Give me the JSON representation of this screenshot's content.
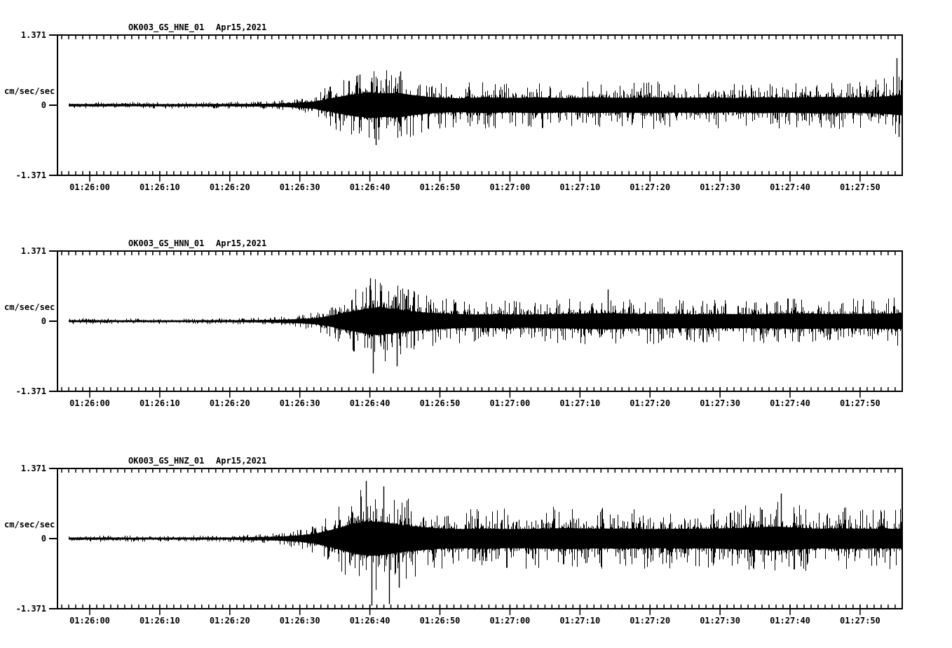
{
  "figure": {
    "background_color": "#ffffff",
    "stroke_color": "#000000",
    "kind": "three-component strong-motion seismogram record display"
  },
  "chart_data": [
    {
      "type": "line",
      "title": "OK003_GS_HNE_01",
      "date_label": "Apr15,2021",
      "y_unit_label": "cm/sec/sec",
      "y_tick_labels": [
        "1.371",
        "0",
        "-1.371"
      ],
      "ylim": [
        -1.371,
        1.371
      ],
      "x_tick_labels": [
        "01:26:00",
        "01:26:10",
        "01:26:20",
        "01:26:30",
        "01:26:40",
        "01:26:50",
        "01:27:00",
        "01:27:10",
        "01:27:20",
        "01:27:30",
        "01:27:40",
        "01:27:50"
      ],
      "x_tick_seconds": [
        0,
        10,
        20,
        30,
        40,
        50,
        60,
        70,
        80,
        90,
        100,
        110
      ],
      "minor_tick_interval_seconds": 1,
      "x_axis_seconds_range": [
        -4.6,
        116.0
      ],
      "trace_seconds_range": [
        -3.1,
        115.9
      ],
      "envelope_t_amp": [
        [
          -3.1,
          0.07
        ],
        [
          10,
          0.065
        ],
        [
          20,
          0.07
        ],
        [
          24,
          0.08
        ],
        [
          27,
          0.1
        ],
        [
          30,
          0.15
        ],
        [
          32,
          0.22
        ],
        [
          34,
          0.38
        ],
        [
          36,
          0.55
        ],
        [
          38,
          0.68
        ],
        [
          40,
          0.78
        ],
        [
          42,
          0.72
        ],
        [
          44,
          0.75
        ],
        [
          46,
          0.62
        ],
        [
          48,
          0.52
        ],
        [
          50,
          0.46
        ],
        [
          53,
          0.42
        ],
        [
          56,
          0.48
        ],
        [
          60,
          0.44
        ],
        [
          64,
          0.48
        ],
        [
          68,
          0.44
        ],
        [
          72,
          0.48
        ],
        [
          76,
          0.45
        ],
        [
          80,
          0.48
        ],
        [
          84,
          0.45
        ],
        [
          88,
          0.47
        ],
        [
          92,
          0.44
        ],
        [
          96,
          0.48
        ],
        [
          100,
          0.46
        ],
        [
          104,
          0.5
        ],
        [
          108,
          0.47
        ],
        [
          112,
          0.5
        ],
        [
          114,
          0.55
        ],
        [
          115.9,
          0.62
        ]
      ],
      "notable_spikes_t_value": [
        [
          40.8,
          -0.78
        ],
        [
          44.3,
          0.66
        ],
        [
          38.5,
          0.6
        ],
        [
          115.2,
          0.92
        ],
        [
          115.5,
          -0.62
        ]
      ]
    },
    {
      "type": "line",
      "title": "OK003_GS_HNN_01",
      "date_label": "Apr15,2021",
      "y_unit_label": "cm/sec/sec",
      "y_tick_labels": [
        "1.371",
        "0",
        "-1.371"
      ],
      "ylim": [
        -1.371,
        1.371
      ],
      "x_tick_labels": [
        "01:26:00",
        "01:26:10",
        "01:26:20",
        "01:26:30",
        "01:26:40",
        "01:26:50",
        "01:27:00",
        "01:27:10",
        "01:27:20",
        "01:27:30",
        "01:27:40",
        "01:27:50"
      ],
      "x_tick_seconds": [
        0,
        10,
        20,
        30,
        40,
        50,
        60,
        70,
        80,
        90,
        100,
        110
      ],
      "minor_tick_interval_seconds": 1,
      "x_axis_seconds_range": [
        -4.6,
        116.0
      ],
      "trace_seconds_range": [
        -3.1,
        115.9
      ],
      "envelope_t_amp": [
        [
          -3.1,
          0.06
        ],
        [
          10,
          0.055
        ],
        [
          20,
          0.06
        ],
        [
          24,
          0.07
        ],
        [
          27,
          0.09
        ],
        [
          30,
          0.13
        ],
        [
          32,
          0.18
        ],
        [
          34,
          0.3
        ],
        [
          36,
          0.5
        ],
        [
          38,
          0.65
        ],
        [
          40,
          0.8
        ],
        [
          41,
          0.85
        ],
        [
          43,
          0.75
        ],
        [
          45,
          0.65
        ],
        [
          47,
          0.56
        ],
        [
          49,
          0.5
        ],
        [
          52,
          0.44
        ],
        [
          55,
          0.4
        ],
        [
          58,
          0.43
        ],
        [
          62,
          0.4
        ],
        [
          66,
          0.43
        ],
        [
          70,
          0.46
        ],
        [
          74,
          0.5
        ],
        [
          78,
          0.44
        ],
        [
          82,
          0.46
        ],
        [
          86,
          0.42
        ],
        [
          90,
          0.44
        ],
        [
          94,
          0.42
        ],
        [
          98,
          0.45
        ],
        [
          102,
          0.47
        ],
        [
          106,
          0.44
        ],
        [
          110,
          0.45
        ],
        [
          113,
          0.46
        ],
        [
          115.9,
          0.48
        ]
      ],
      "notable_spikes_t_value": [
        [
          40.4,
          -1.02
        ],
        [
          43.8,
          -0.88
        ],
        [
          40.0,
          0.84
        ],
        [
          45.4,
          0.62
        ],
        [
          74.0,
          0.62
        ]
      ]
    },
    {
      "type": "line",
      "title": "OK003_GS_HNZ_01",
      "date_label": "Apr15,2021",
      "y_unit_label": "cm/sec/sec",
      "y_tick_labels": [
        "1.371",
        "0",
        "-1.371"
      ],
      "ylim": [
        -1.371,
        1.371
      ],
      "x_tick_labels": [
        "01:26:00",
        "01:26:10",
        "01:26:20",
        "01:26:30",
        "01:26:40",
        "01:26:50",
        "01:27:00",
        "01:27:10",
        "01:27:20",
        "01:27:30",
        "01:27:40",
        "01:27:50"
      ],
      "x_tick_seconds": [
        0,
        10,
        20,
        30,
        40,
        50,
        60,
        70,
        80,
        90,
        100,
        110
      ],
      "minor_tick_interval_seconds": 1,
      "x_axis_seconds_range": [
        -4.6,
        116.0
      ],
      "trace_seconds_range": [
        -3.1,
        115.9
      ],
      "envelope_t_amp": [
        [
          -3.1,
          0.065
        ],
        [
          10,
          0.06
        ],
        [
          20,
          0.065
        ],
        [
          24,
          0.09
        ],
        [
          27,
          0.12
        ],
        [
          30,
          0.2
        ],
        [
          32,
          0.3
        ],
        [
          34,
          0.48
        ],
        [
          36,
          0.72
        ],
        [
          38,
          0.95
        ],
        [
          40,
          1.05
        ],
        [
          42,
          1.0
        ],
        [
          44,
          0.85
        ],
        [
          46,
          0.76
        ],
        [
          48,
          0.68
        ],
        [
          50,
          0.62
        ],
        [
          53,
          0.58
        ],
        [
          56,
          0.62
        ],
        [
          60,
          0.58
        ],
        [
          64,
          0.6
        ],
        [
          68,
          0.64
        ],
        [
          72,
          0.6
        ],
        [
          76,
          0.62
        ],
        [
          80,
          0.58
        ],
        [
          84,
          0.6
        ],
        [
          88,
          0.6
        ],
        [
          92,
          0.64
        ],
        [
          95,
          0.68
        ],
        [
          98,
          0.74
        ],
        [
          101,
          0.66
        ],
        [
          104,
          0.6
        ],
        [
          108,
          0.62
        ],
        [
          112,
          0.6
        ],
        [
          115.9,
          0.6
        ]
      ],
      "notable_spikes_t_value": [
        [
          40.2,
          -1.31
        ],
        [
          42.7,
          -1.28
        ],
        [
          39.4,
          1.13
        ],
        [
          41.9,
          1.02
        ],
        [
          44.1,
          -0.96
        ],
        [
          98.7,
          0.88
        ]
      ]
    }
  ]
}
